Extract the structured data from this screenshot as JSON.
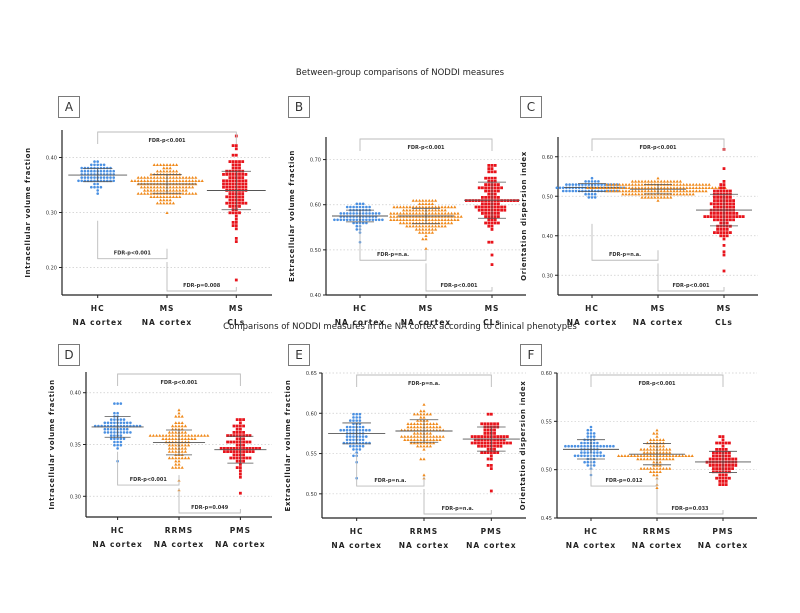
{
  "titles": {
    "top": "Between-group comparisons of NODDI measures",
    "bottom": "Comparisons of NODDI measures in the NA cortex according to clinical phenotypes"
  },
  "colors": {
    "HC": "#4a90e2",
    "MS_NA": "#f08a1c",
    "MS_CL": "#e8141c",
    "axis": "#222222",
    "grid": "#cccccc",
    "bracket": "#bbbbbb",
    "mean_line": "#555555"
  },
  "chart_data": [
    {
      "panel": "A",
      "type": "scatter",
      "ylabel": "Intracellular volume fraction",
      "ylim": [
        0.15,
        0.45
      ],
      "yticks": [
        0.2,
        0.3,
        0.4
      ],
      "ytick_labels": [
        "0.20",
        "0.30",
        "0.40"
      ],
      "categories": [
        [
          "HC",
          "NA cortex"
        ],
        [
          "MS",
          "NA cortex"
        ],
        [
          "MS",
          "CLs"
        ]
      ],
      "series": [
        {
          "name": "HC NA cortex",
          "marker": "circle",
          "color": "#4a90e2",
          "n": 70,
          "mean": 0.368,
          "sd": 0.012,
          "min": 0.336,
          "max": 0.395
        },
        {
          "name": "MS NA cortex",
          "marker": "triangle",
          "color": "#f08a1c",
          "n": 160,
          "mean": 0.352,
          "sd": 0.017,
          "min": 0.302,
          "max": 0.385
        },
        {
          "name": "MS CLs",
          "marker": "square",
          "color": "#e8141c",
          "n": 110,
          "mean": 0.34,
          "sd": 0.035,
          "min": 0.18,
          "max": 0.44
        }
      ],
      "brackets": [
        {
          "from": 0,
          "to": 2,
          "label": "FDR-p<0.001",
          "position": "top"
        },
        {
          "from": 0,
          "to": 1,
          "label": "FDR-p<0.001",
          "position": "lower"
        },
        {
          "from": 1,
          "to": 2,
          "label": "FDR-p=0.008",
          "position": "bottom"
        }
      ]
    },
    {
      "panel": "B",
      "type": "scatter",
      "ylabel": "Extracellular volume fraction",
      "ylim": [
        0.4,
        0.75
      ],
      "yticks": [
        0.4,
        0.5,
        0.6,
        0.7
      ],
      "ytick_labels": [
        "0.40",
        "0.50",
        "0.60",
        "0.70"
      ],
      "categories": [
        [
          "HC",
          "NA cortex"
        ],
        [
          "MS",
          "NA cortex"
        ],
        [
          "MS",
          "CLs"
        ]
      ],
      "series": [
        {
          "name": "HC NA cortex",
          "marker": "circle",
          "color": "#4a90e2",
          "n": 70,
          "mean": 0.575,
          "sd": 0.013,
          "min": 0.52,
          "max": 0.6
        },
        {
          "name": "MS NA cortex",
          "marker": "triangle",
          "color": "#f08a1c",
          "n": 160,
          "mean": 0.575,
          "sd": 0.017,
          "min": 0.505,
          "max": 0.61
        },
        {
          "name": "MS CLs",
          "marker": "square",
          "color": "#e8141c",
          "n": 110,
          "mean": 0.61,
          "sd": 0.04,
          "min": 0.465,
          "max": 0.69
        }
      ],
      "brackets": [
        {
          "from": 0,
          "to": 2,
          "label": "FDR-p<0.001",
          "position": "top"
        },
        {
          "from": 0,
          "to": 1,
          "label": "FDR-p=n.a.",
          "position": "lower"
        },
        {
          "from": 1,
          "to": 2,
          "label": "FDR-p<0.001",
          "position": "bottom"
        }
      ]
    },
    {
      "panel": "C",
      "type": "scatter",
      "ylabel": "Orientation dispersion index",
      "ylim": [
        0.25,
        0.65
      ],
      "yticks": [
        0.3,
        0.4,
        0.5,
        0.6
      ],
      "ytick_labels": [
        "0.30",
        "0.40",
        "0.50",
        "0.60"
      ],
      "categories": [
        [
          "HC",
          "NA cortex"
        ],
        [
          "MS",
          "NA cortex"
        ],
        [
          "MS",
          "CLs"
        ]
      ],
      "series": [
        {
          "name": "HC NA cortex",
          "marker": "circle",
          "color": "#4a90e2",
          "n": 70,
          "mean": 0.522,
          "sd": 0.01,
          "min": 0.495,
          "max": 0.545
        },
        {
          "name": "MS NA cortex",
          "marker": "triangle",
          "color": "#f08a1c",
          "n": 160,
          "mean": 0.518,
          "sd": 0.012,
          "min": 0.485,
          "max": 0.545
        },
        {
          "name": "MS CLs",
          "marker": "square",
          "color": "#e8141c",
          "n": 110,
          "mean": 0.465,
          "sd": 0.04,
          "min": 0.31,
          "max": 0.62
        }
      ],
      "brackets": [
        {
          "from": 0,
          "to": 2,
          "label": "FDR-p<0.001",
          "position": "top"
        },
        {
          "from": 0,
          "to": 1,
          "label": "FDR-p=n.a.",
          "position": "lower"
        },
        {
          "from": 1,
          "to": 2,
          "label": "FDR-p<0.001",
          "position": "bottom"
        }
      ]
    },
    {
      "panel": "D",
      "type": "scatter",
      "ylabel": "Intracellular volume fraction",
      "ylim": [
        0.28,
        0.42
      ],
      "yticks": [
        0.3,
        0.35,
        0.4
      ],
      "ytick_labels": [
        "0.30",
        "0.35",
        "0.40"
      ],
      "categories": [
        [
          "HC",
          "NA cortex"
        ],
        [
          "RRMS",
          "NA cortex"
        ],
        [
          "PMS",
          "NA cortex"
        ]
      ],
      "series": [
        {
          "name": "HC NA cortex",
          "marker": "circle",
          "color": "#4a90e2",
          "n": 70,
          "mean": 0.367,
          "sd": 0.01,
          "min": 0.335,
          "max": 0.39
        },
        {
          "name": "RRMS NA cortex",
          "marker": "triangle",
          "color": "#f08a1c",
          "n": 100,
          "mean": 0.352,
          "sd": 0.012,
          "min": 0.306,
          "max": 0.383
        },
        {
          "name": "PMS NA cortex",
          "marker": "square",
          "color": "#e8141c",
          "n": 80,
          "mean": 0.345,
          "sd": 0.013,
          "min": 0.302,
          "max": 0.375
        }
      ],
      "brackets": [
        {
          "from": 0,
          "to": 2,
          "label": "FDR-p<0.001",
          "position": "top"
        },
        {
          "from": 0,
          "to": 1,
          "label": "FDR-p<0.001",
          "position": "lower"
        },
        {
          "from": 1,
          "to": 2,
          "label": "FDR-p=0.049",
          "position": "bottom"
        }
      ]
    },
    {
      "panel": "E",
      "type": "scatter",
      "ylabel": "Extracellular volume fraction",
      "ylim": [
        0.47,
        0.65
      ],
      "yticks": [
        0.5,
        0.55,
        0.6,
        0.65
      ],
      "ytick_labels": [
        "0.50",
        "0.55",
        "0.60",
        "0.65"
      ],
      "categories": [
        [
          "HC",
          "NA cortex"
        ],
        [
          "RRMS",
          "NA cortex"
        ],
        [
          "PMS",
          "NA cortex"
        ]
      ],
      "series": [
        {
          "name": "HC NA cortex",
          "marker": "circle",
          "color": "#4a90e2",
          "n": 70,
          "mean": 0.575,
          "sd": 0.013,
          "min": 0.52,
          "max": 0.6
        },
        {
          "name": "RRMS NA cortex",
          "marker": "triangle",
          "color": "#f08a1c",
          "n": 100,
          "mean": 0.578,
          "sd": 0.014,
          "min": 0.52,
          "max": 0.612
        },
        {
          "name": "PMS NA cortex",
          "marker": "square",
          "color": "#e8141c",
          "n": 80,
          "mean": 0.568,
          "sd": 0.015,
          "min": 0.505,
          "max": 0.598
        }
      ],
      "brackets": [
        {
          "from": 0,
          "to": 2,
          "label": "FDR-p=n.a.",
          "position": "top"
        },
        {
          "from": 0,
          "to": 1,
          "label": "FDR-p=n.a.",
          "position": "lower"
        },
        {
          "from": 1,
          "to": 2,
          "label": "FDR-p=n.a.",
          "position": "bottom"
        }
      ]
    },
    {
      "panel": "F",
      "type": "scatter",
      "ylabel": "Orientation dispersion index",
      "ylim": [
        0.45,
        0.6
      ],
      "yticks": [
        0.45,
        0.5,
        0.55,
        0.6
      ],
      "ytick_labels": [
        "0.45",
        "0.50",
        "0.55",
        "0.60"
      ],
      "categories": [
        [
          "HC",
          "NA cortex"
        ],
        [
          "RRMS",
          "NA cortex"
        ],
        [
          "PMS",
          "NA cortex"
        ]
      ],
      "series": [
        {
          "name": "HC NA cortex",
          "marker": "circle",
          "color": "#4a90e2",
          "n": 70,
          "mean": 0.521,
          "sd": 0.01,
          "min": 0.495,
          "max": 0.545
        },
        {
          "name": "RRMS NA cortex",
          "marker": "triangle",
          "color": "#f08a1c",
          "n": 100,
          "mean": 0.516,
          "sd": 0.011,
          "min": 0.482,
          "max": 0.542
        },
        {
          "name": "PMS NA cortex",
          "marker": "square",
          "color": "#e8141c",
          "n": 80,
          "mean": 0.508,
          "sd": 0.011,
          "min": 0.484,
          "max": 0.535
        }
      ],
      "brackets": [
        {
          "from": 0,
          "to": 2,
          "label": "FDR-p<0.001",
          "position": "top"
        },
        {
          "from": 0,
          "to": 1,
          "label": "FDR-p=0.012",
          "position": "lower"
        },
        {
          "from": 1,
          "to": 2,
          "label": "FDR-p=0.033",
          "position": "bottom"
        }
      ]
    }
  ]
}
